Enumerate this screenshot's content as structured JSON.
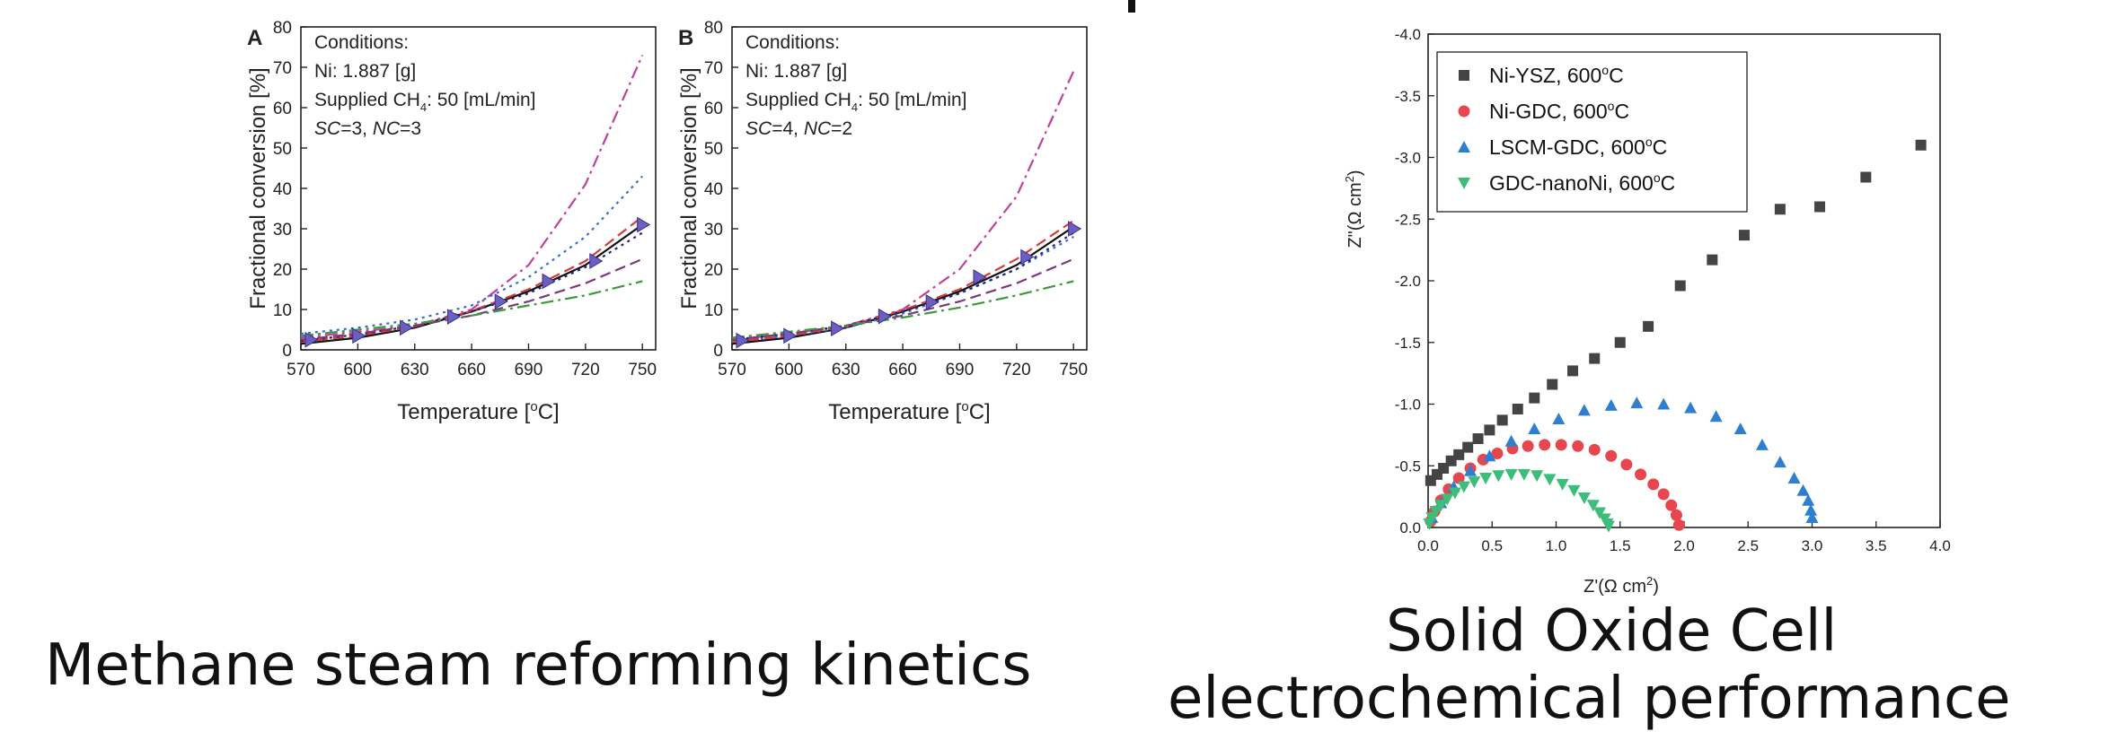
{
  "captions": {
    "left": "Methane steam reforming kinetics",
    "right_line1": "Solid Oxide Cell",
    "right_line2": "electrochemical performance"
  },
  "chart_data": [
    {
      "type": "line",
      "panel_letter": "A",
      "conditions": {
        "heading": "Conditions:",
        "ni": "Ni: 1.887 [g]",
        "ch4_prefix": "Supplied CH",
        "ch4_sub": "4",
        "ch4_suffix": ": 50 [mL/min]",
        "ratio_sc_label": "SC",
        "ratio_sc_value": "=3, ",
        "ratio_nc_label": "NC",
        "ratio_nc_value": "=3"
      },
      "xlabel_prefix": "Temperature [",
      "xlabel_sup": "o",
      "xlabel_suffix": "C]",
      "ylabel": "Fractional conversion [%]",
      "xlim": [
        570,
        757
      ],
      "ylim": [
        0,
        80
      ],
      "xticks": [
        "570",
        "600",
        "630",
        "660",
        "690",
        "720",
        "750"
      ],
      "yticks": [
        "0",
        "10",
        "20",
        "30",
        "40",
        "50",
        "60",
        "70",
        "80"
      ],
      "markers": {
        "x": [
          575,
          600,
          625,
          650,
          675,
          700,
          725,
          750
        ],
        "y": [
          2.5,
          3.5,
          5.5,
          8.2,
          12.0,
          17.0,
          22.0,
          31.0
        ]
      },
      "series": [
        {
          "style": "solid",
          "color": "#111111",
          "x": [
            570,
            600,
            630,
            660,
            690,
            720,
            750
          ],
          "y": [
            1.5,
            3.0,
            5.5,
            9.5,
            14.5,
            21.0,
            31.0
          ]
        },
        {
          "style": "dashdot",
          "color": "#c0409a",
          "x": [
            570,
            600,
            630,
            660,
            690,
            720,
            750
          ],
          "y": [
            3.0,
            4.5,
            6.0,
            10.0,
            21.0,
            41.0,
            73.0
          ]
        },
        {
          "style": "dot",
          "color": "#2f6fcf",
          "x": [
            570,
            600,
            630,
            660,
            690,
            720,
            750
          ],
          "y": [
            4.0,
            5.5,
            7.5,
            11.0,
            18.0,
            28.0,
            43.0
          ]
        },
        {
          "style": "dash",
          "color": "#d43c3c",
          "x": [
            570,
            600,
            630,
            660,
            690,
            720,
            750
          ],
          "y": [
            2.0,
            3.5,
            5.8,
            9.6,
            15.0,
            22.0,
            33.0
          ]
        },
        {
          "style": "dot",
          "color": "#222277",
          "x": [
            570,
            600,
            630,
            660,
            690,
            720,
            750
          ],
          "y": [
            2.2,
            3.8,
            6.0,
            9.5,
            14.0,
            20.5,
            29.0
          ]
        },
        {
          "style": "dash",
          "color": "#7a3a7a",
          "x": [
            570,
            600,
            630,
            660,
            690,
            720,
            750
          ],
          "y": [
            2.5,
            4.0,
            6.0,
            8.5,
            12.0,
            16.5,
            22.5
          ]
        },
        {
          "style": "dashdot",
          "color": "#3a9a3a",
          "x": [
            570,
            600,
            630,
            660,
            690,
            720,
            750
          ],
          "y": [
            3.5,
            5.0,
            6.5,
            8.5,
            11.0,
            13.5,
            17.0
          ]
        }
      ]
    },
    {
      "type": "line",
      "panel_letter": "B",
      "conditions": {
        "heading": "Conditions:",
        "ni": "Ni: 1.887 [g]",
        "ch4_prefix": "Supplied CH",
        "ch4_sub": "4",
        "ch4_suffix": ": 50 [mL/min]",
        "ratio_sc_label": "SC",
        "ratio_sc_value": "=4, ",
        "ratio_nc_label": "NC",
        "ratio_nc_value": "=2"
      },
      "xlabel_prefix": "Temperature [",
      "xlabel_sup": "o",
      "xlabel_suffix": "C]",
      "ylabel": "Fractional conversion [%]",
      "xlim": [
        570,
        757
      ],
      "ylim": [
        0,
        80
      ],
      "xticks": [
        "570",
        "600",
        "630",
        "660",
        "690",
        "720",
        "750"
      ],
      "yticks": [
        "0",
        "10",
        "20",
        "30",
        "40",
        "50",
        "60",
        "70",
        "80"
      ],
      "markers": {
        "x": [
          575,
          600,
          625,
          650,
          675,
          700,
          725,
          750
        ],
        "y": [
          2.3,
          3.5,
          5.3,
          8.3,
          11.8,
          18.0,
          23.0,
          30.0
        ]
      },
      "series": [
        {
          "style": "solid",
          "color": "#111111",
          "x": [
            570,
            600,
            630,
            660,
            690,
            720,
            750
          ],
          "y": [
            1.5,
            3.0,
            5.5,
            9.5,
            14.5,
            21.0,
            30.5
          ]
        },
        {
          "style": "dashdot",
          "color": "#c0409a",
          "x": [
            570,
            600,
            630,
            660,
            690,
            720,
            750
          ],
          "y": [
            2.5,
            4.0,
            6.0,
            10.0,
            20.0,
            38.0,
            69.0
          ]
        },
        {
          "style": "dot",
          "color": "#2f6fcf",
          "x": [
            570,
            600,
            630,
            660,
            690,
            720,
            750
          ],
          "y": [
            2.0,
            3.5,
            5.5,
            9.0,
            14.0,
            20.0,
            28.0
          ]
        },
        {
          "style": "dash",
          "color": "#d43c3c",
          "x": [
            570,
            600,
            630,
            660,
            690,
            720,
            750
          ],
          "y": [
            2.0,
            3.5,
            5.8,
            9.8,
            15.0,
            22.5,
            32.0
          ]
        },
        {
          "style": "dot",
          "color": "#222277",
          "x": [
            570,
            600,
            630,
            660,
            690,
            720,
            750
          ],
          "y": [
            2.5,
            4.0,
            6.0,
            9.5,
            14.0,
            20.0,
            29.0
          ]
        },
        {
          "style": "dash",
          "color": "#7a3a7a",
          "x": [
            570,
            600,
            630,
            660,
            690,
            720,
            750
          ],
          "y": [
            2.5,
            4.0,
            6.0,
            8.5,
            12.0,
            16.5,
            22.5
          ]
        },
        {
          "style": "dashdot",
          "color": "#3a9a3a",
          "x": [
            570,
            600,
            630,
            660,
            690,
            720,
            750
          ],
          "y": [
            3.0,
            4.5,
            6.0,
            8.0,
            10.5,
            13.5,
            17.0
          ]
        }
      ]
    },
    {
      "type": "scatter",
      "xlabel_prefix": "Z'(Ω cm",
      "xlabel_sup": "2",
      "xlabel_suffix": ")",
      "ylabel_prefix": "Z\"(Ω cm",
      "ylabel_sup": "2",
      "ylabel_suffix": ")",
      "xlim": [
        0.0,
        4.0
      ],
      "ylim": [
        0.0,
        -4.0
      ],
      "xticks": [
        "0.0",
        "0.5",
        "1.0",
        "1.5",
        "2.0",
        "2.5",
        "3.0",
        "3.5",
        "4.0"
      ],
      "yticks": [
        "0.0",
        "-0.5",
        "-1.0",
        "-1.5",
        "-2.0",
        "-2.5",
        "-3.0",
        "-3.5",
        "-4.0"
      ],
      "legend_position": "top-left",
      "series": [
        {
          "name_prefix": "Ni-YSZ, 600",
          "name_sup": "o",
          "name_suffix": "C",
          "marker": "square",
          "color": "#444444",
          "x": [
            0.02,
            0.07,
            0.12,
            0.18,
            0.24,
            0.31,
            0.39,
            0.48,
            0.58,
            0.7,
            0.83,
            0.97,
            1.13,
            1.3,
            1.5,
            1.72,
            1.97,
            2.22,
            2.47,
            2.75,
            3.06,
            3.42,
            3.85
          ],
          "y": [
            -0.38,
            -0.43,
            -0.48,
            -0.54,
            -0.59,
            -0.65,
            -0.72,
            -0.79,
            -0.87,
            -0.96,
            -1.05,
            -1.16,
            -1.27,
            -1.37,
            -1.5,
            -1.63,
            -1.96,
            -2.17,
            -2.37,
            -2.58,
            -2.6,
            -2.84,
            -3.1
          ]
        },
        {
          "name_prefix": "Ni-GDC, 600",
          "name_sup": "o",
          "name_suffix": "C",
          "marker": "circle",
          "color": "#e8464e",
          "x": [
            0.02,
            0.05,
            0.1,
            0.16,
            0.24,
            0.33,
            0.43,
            0.54,
            0.66,
            0.78,
            0.91,
            1.04,
            1.17,
            1.3,
            1.43,
            1.55,
            1.66,
            1.76,
            1.84,
            1.9,
            1.94,
            1.96
          ],
          "y": [
            -0.05,
            -0.13,
            -0.22,
            -0.31,
            -0.4,
            -0.48,
            -0.55,
            -0.6,
            -0.64,
            -0.66,
            -0.67,
            -0.67,
            -0.66,
            -0.63,
            -0.58,
            -0.51,
            -0.43,
            -0.35,
            -0.27,
            -0.18,
            -0.1,
            -0.02
          ]
        },
        {
          "name_prefix": "LSCM-GDC, 600",
          "name_sup": "o",
          "name_suffix": "C",
          "marker": "triangle-up",
          "color": "#2f7fd0",
          "x": [
            0.03,
            0.1,
            0.2,
            0.33,
            0.48,
            0.65,
            0.83,
            1.02,
            1.22,
            1.43,
            1.63,
            1.84,
            2.05,
            2.25,
            2.44,
            2.61,
            2.75,
            2.86,
            2.93,
            2.97,
            2.99,
            3.0
          ],
          "y": [
            -0.08,
            -0.2,
            -0.33,
            -0.46,
            -0.58,
            -0.7,
            -0.8,
            -0.88,
            -0.95,
            -0.99,
            -1.01,
            -1.0,
            -0.97,
            -0.9,
            -0.8,
            -0.67,
            -0.53,
            -0.4,
            -0.3,
            -0.22,
            -0.14,
            -0.08
          ]
        },
        {
          "name_prefix": "GDC-nanoNi, 600",
          "name_sup": "o",
          "name_suffix": "C",
          "marker": "triangle-down",
          "color": "#3dbd7a",
          "x": [
            0.01,
            0.03,
            0.06,
            0.1,
            0.15,
            0.21,
            0.28,
            0.36,
            0.45,
            0.55,
            0.65,
            0.75,
            0.85,
            0.95,
            1.05,
            1.14,
            1.22,
            1.29,
            1.34,
            1.38,
            1.4,
            1.41
          ],
          "y": [
            -0.03,
            -0.08,
            -0.13,
            -0.18,
            -0.23,
            -0.28,
            -0.33,
            -0.37,
            -0.4,
            -0.42,
            -0.43,
            -0.43,
            -0.42,
            -0.39,
            -0.35,
            -0.3,
            -0.24,
            -0.18,
            -0.12,
            -0.07,
            -0.03,
            -0.01
          ]
        }
      ]
    }
  ]
}
